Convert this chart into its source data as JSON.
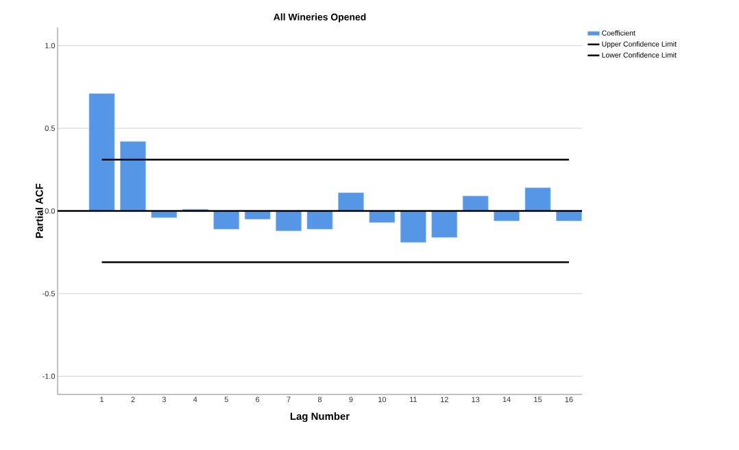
{
  "chart_data": {
    "type": "bar",
    "title": "All Wineries Opened",
    "xlabel": "Lag Number",
    "ylabel": "Partial ACF",
    "categories": [
      "1",
      "2",
      "3",
      "4",
      "5",
      "6",
      "7",
      "8",
      "9",
      "10",
      "11",
      "12",
      "13",
      "14",
      "15",
      "16"
    ],
    "series": [
      {
        "name": "Coefficient",
        "color": "#5596e6",
        "values": [
          0.71,
          0.42,
          -0.04,
          0.01,
          -0.11,
          -0.05,
          -0.12,
          -0.11,
          0.11,
          -0.07,
          -0.19,
          -0.16,
          0.09,
          -0.06,
          0.14,
          -0.06
        ]
      },
      {
        "name": "Upper Confidence Limit",
        "type": "line",
        "color": "#000000",
        "values": [
          0.31,
          0.31,
          0.31,
          0.31,
          0.31,
          0.31,
          0.31,
          0.31,
          0.31,
          0.31,
          0.31,
          0.31,
          0.31,
          0.31,
          0.31,
          0.31
        ]
      },
      {
        "name": "Lower Confidence Limit",
        "type": "line",
        "color": "#000000",
        "values": [
          -0.31,
          -0.31,
          -0.31,
          -0.31,
          -0.31,
          -0.31,
          -0.31,
          -0.31,
          -0.31,
          -0.31,
          -0.31,
          -0.31,
          -0.31,
          -0.31,
          -0.31,
          -0.31
        ]
      }
    ],
    "ylim": [
      -1.11,
      1.11
    ],
    "yticks": [
      {
        "value": -1,
        "label": "-1.0"
      },
      {
        "value": -0.5,
        "label": "-0.5"
      },
      {
        "value": 0,
        "label": "0.0"
      },
      {
        "value": 0.5,
        "label": "0.5"
      },
      {
        "value": 1,
        "label": "1.0"
      }
    ],
    "ref_lines": [
      {
        "axis": "y",
        "value": 0,
        "color": "#000000"
      }
    ],
    "grid": "y",
    "legend": "top right",
    "marker": "none",
    "line_style": "solid"
  }
}
